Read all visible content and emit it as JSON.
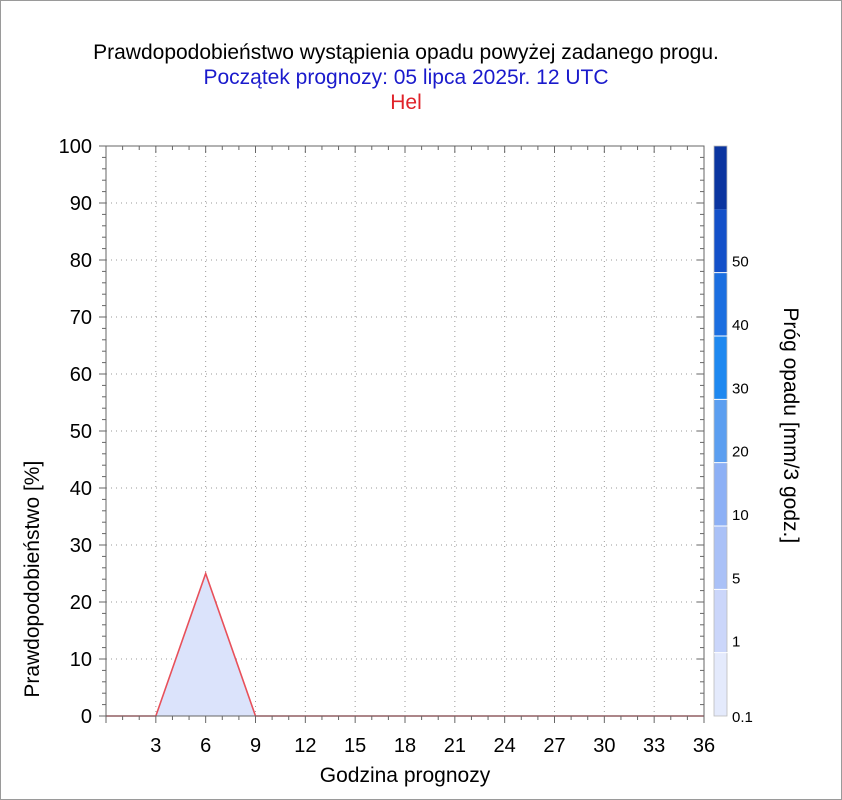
{
  "chart_data": {
    "type": "area",
    "title": "Prawdopodobieństwo wystąpienia opadu powyżej zadanego progu.",
    "subtitle": "Początek prognozy: 05 lipca 2025r. 12 UTC",
    "station": "Hel",
    "xlabel": "Godzina prognozy",
    "ylabel": "Prawdopodobieństwo [%]",
    "xlim": [
      0,
      36
    ],
    "ylim": [
      0,
      100
    ],
    "x_ticks": [
      3,
      6,
      9,
      12,
      15,
      18,
      21,
      24,
      27,
      30,
      33,
      36
    ],
    "y_ticks": [
      0,
      10,
      20,
      30,
      40,
      50,
      60,
      70,
      80,
      90,
      100
    ],
    "grid": true,
    "series": [
      {
        "threshold": 0.1,
        "x": [
          0,
          3,
          6,
          9,
          12,
          15,
          18,
          21,
          24,
          27,
          30,
          33,
          36
        ],
        "y": [
          0,
          0,
          25,
          0,
          0,
          0,
          0,
          0,
          0,
          0,
          0,
          0,
          0
        ],
        "fill_color": "#dbe3fb",
        "line_color": "#e8505a"
      }
    ],
    "colorbar": {
      "label": "Próg opadu [mm/3 godz.]",
      "tick_labels": [
        "0.1",
        "1",
        "5",
        "10",
        "20",
        "30",
        "40",
        "50"
      ],
      "colors": [
        "#e4eafc",
        "#cbd6fa",
        "#aac1f7",
        "#8db0f5",
        "#5b9ef0",
        "#1e88f0",
        "#1b6ee0",
        "#1350c9",
        "#0b35a0"
      ]
    }
  }
}
